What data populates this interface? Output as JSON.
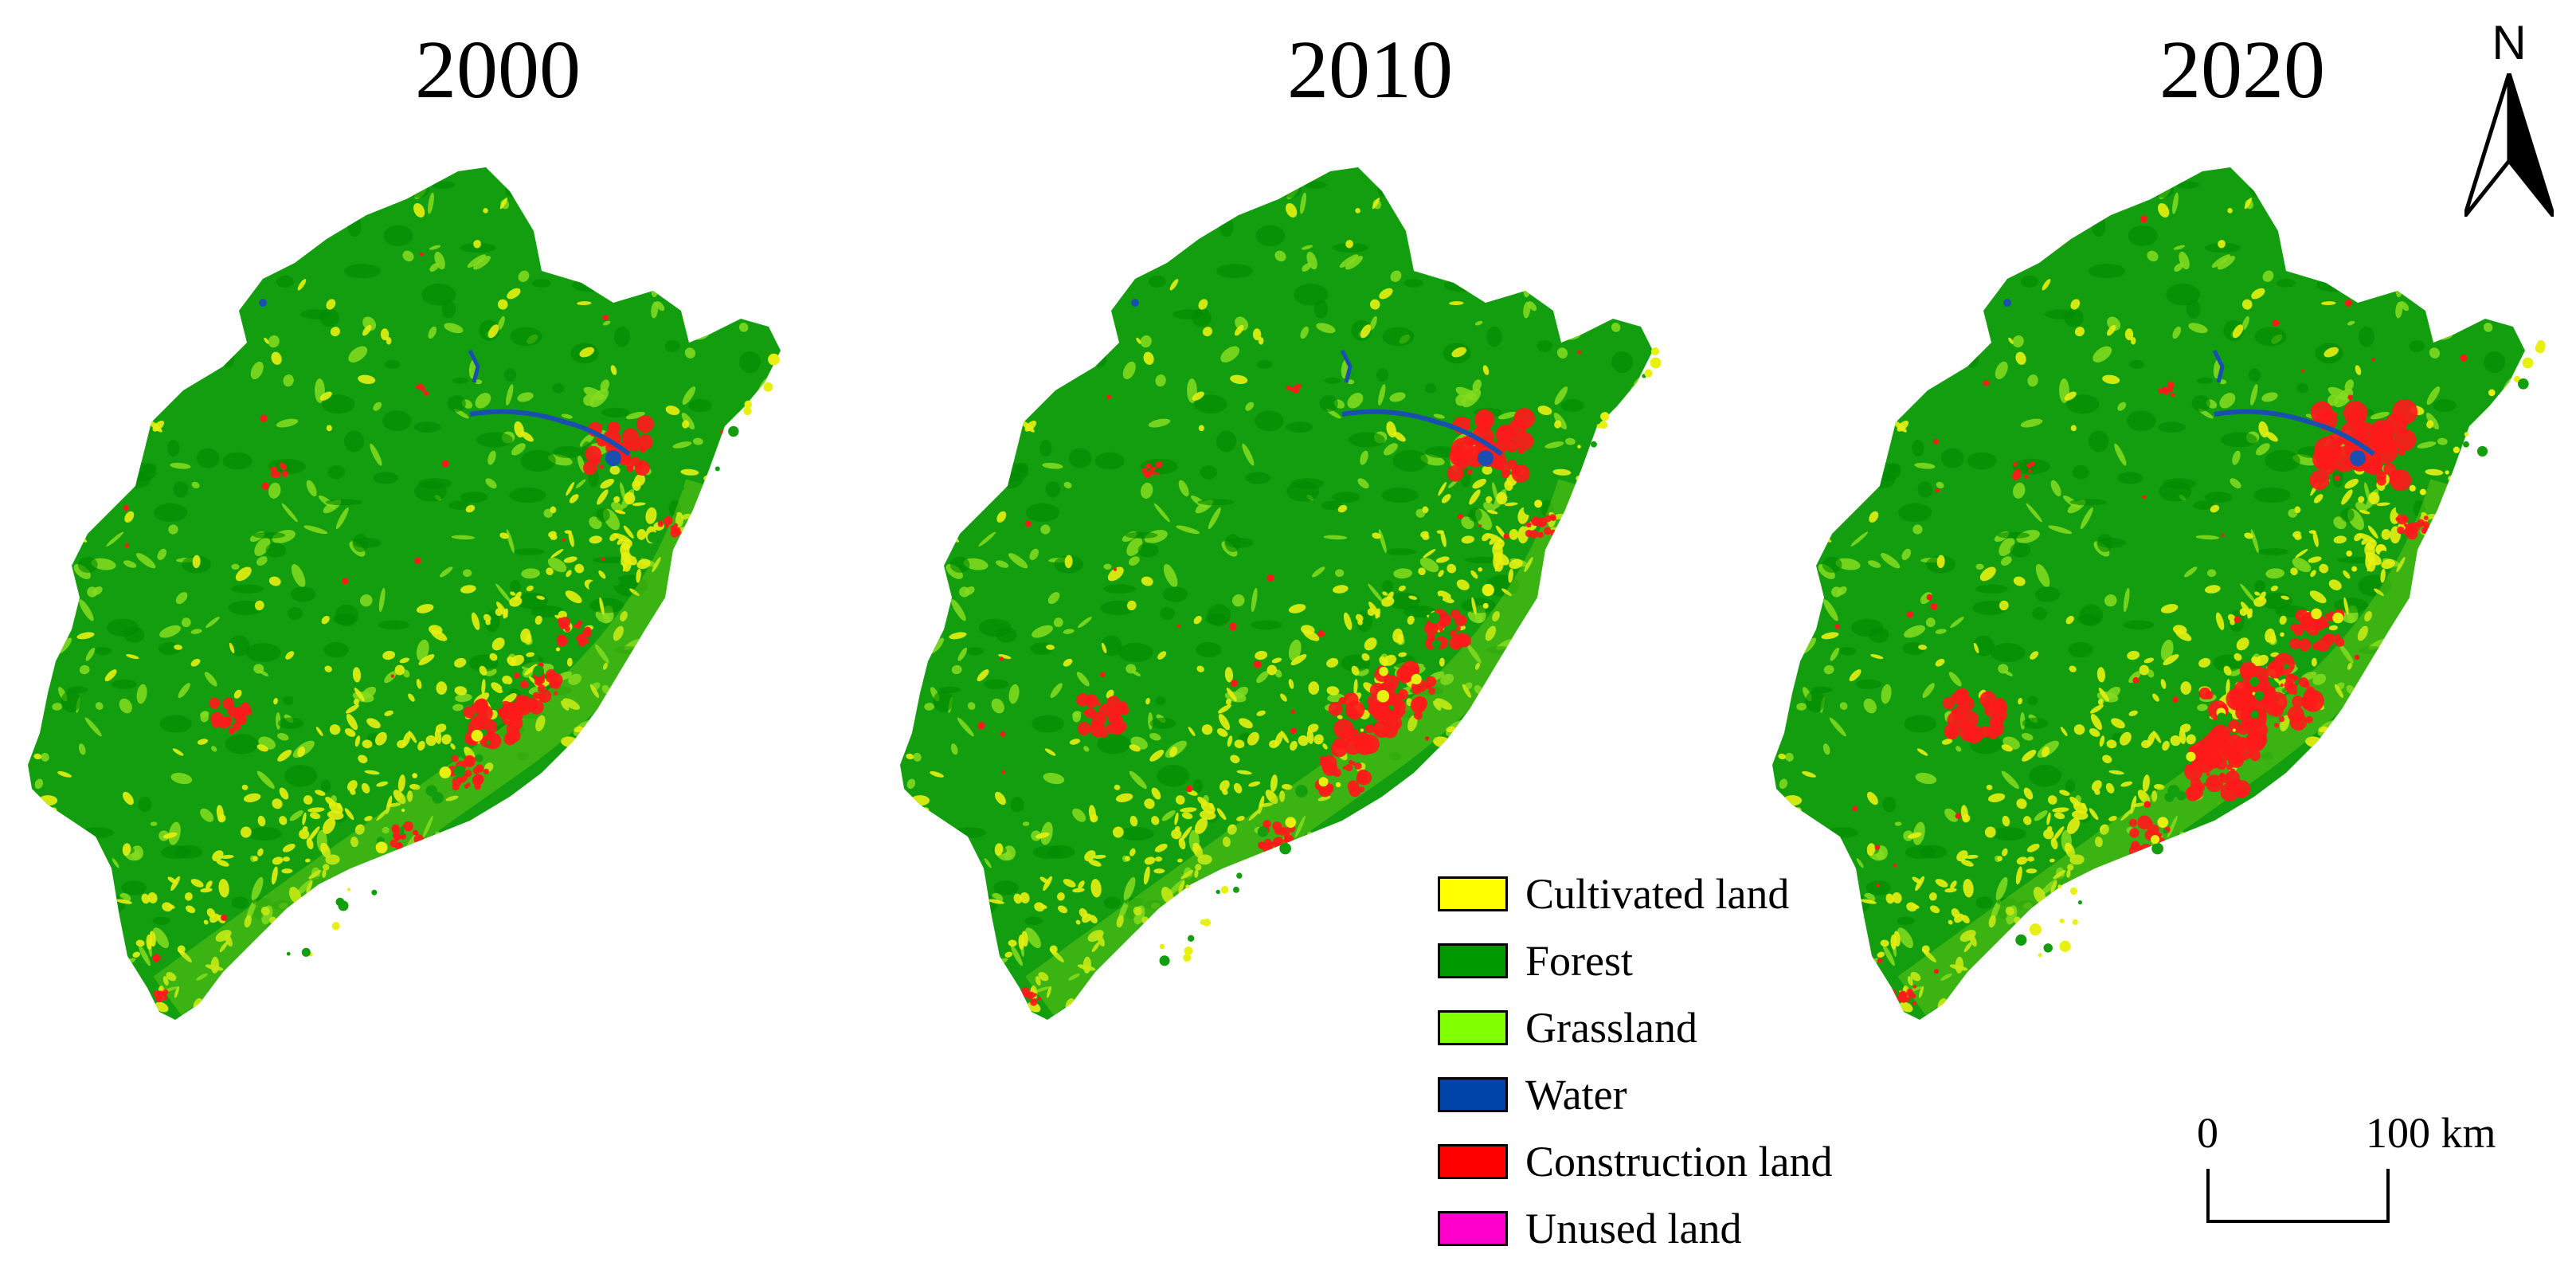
{
  "years": [
    "2000",
    "2010",
    "2020"
  ],
  "legend": [
    {
      "label": "Cultivated land",
      "color": "#ffff00"
    },
    {
      "label": "Forest",
      "color": "#009a00"
    },
    {
      "label": "Grassland",
      "color": "#80ff00"
    },
    {
      "label": "Water",
      "color": "#0044aa"
    },
    {
      "label": "Construction land",
      "color": "#ff0000"
    },
    {
      "label": "Unused land",
      "color": "#ff00cc"
    }
  ],
  "north_arrow": {
    "label": "N"
  },
  "scale_bar": {
    "start": "0",
    "end": "100 km"
  },
  "colors": {
    "forest_dark": "#008a00",
    "forest_main": "#139e0f",
    "grass": "#86dc1e",
    "cultivated": "#e8f012",
    "construction": "#ff1a1a",
    "water": "#1a4fb0"
  }
}
